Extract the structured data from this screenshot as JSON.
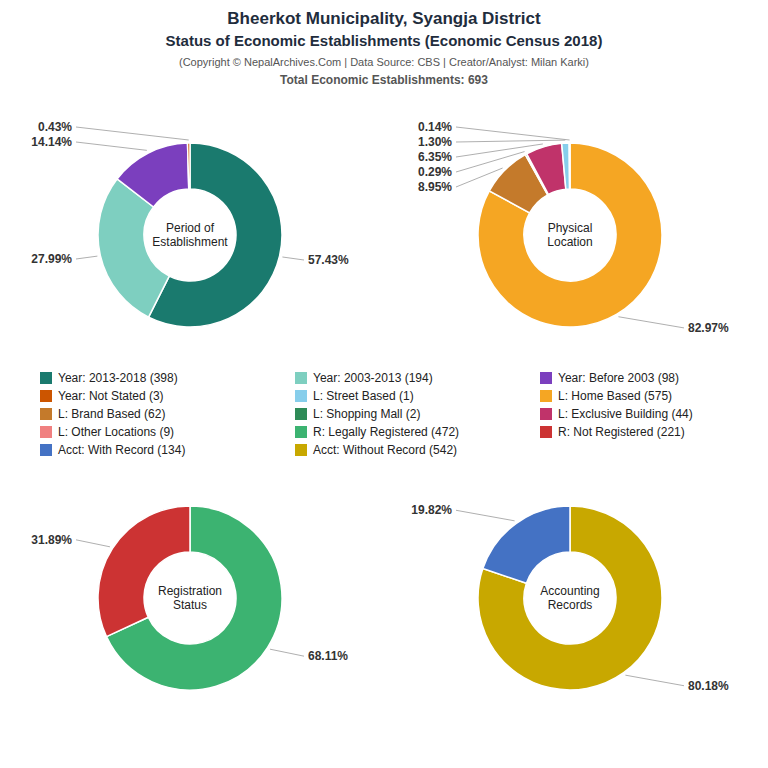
{
  "title": "Bheerkot Municipality, Syangja District",
  "subtitle": "Status of Economic Establishments (Economic Census 2018)",
  "annotations": [
    "(Copyright © NepalArchives.Com | Data Source: CBS | Creator/Analyst: Milan Karki)",
    "Total Economic Establishments: 693"
  ],
  "series": [
    {
      "name": "Year: 2013-2018 (398)",
      "color": "#1A7A6E"
    },
    {
      "name": "Year: 2003-2013 (194)",
      "color": "#7ECFC0"
    },
    {
      "name": "Year: Before 2003 (98)",
      "color": "#7B3FBE"
    },
    {
      "name": "Year: Not Stated (3)",
      "color": "#CC5500"
    },
    {
      "name": "L: Street Based (1)",
      "color": "#87CEEB"
    },
    {
      "name": "L: Home Based (575)",
      "color": "#F5A623"
    },
    {
      "name": "L: Brand Based (62)",
      "color": "#C47A2B"
    },
    {
      "name": "L: Shopping Mall (2)",
      "color": "#2E8B57"
    },
    {
      "name": "L: Exclusive Building (44)",
      "color": "#C0336A"
    },
    {
      "name": "L: Other Locations (9)",
      "color": "#F08080"
    },
    {
      "name": "R: Legally Registered (472)",
      "color": "#3CB371"
    },
    {
      "name": "R: Not Registered (221)",
      "color": "#CC3333"
    },
    {
      "name": "Acct: With Record (134)",
      "color": "#4472C4"
    },
    {
      "name": "Acct: Without Record (542)",
      "color": "#C8A800"
    }
  ],
  "chart_data": [
    {
      "type": "donut",
      "title": "Period of\nEstablishment",
      "values": [
        57.43,
        27.99,
        14.14,
        0.43
      ],
      "value_labels": [
        "57.43%",
        "27.99%",
        "14.14%",
        "0.43%"
      ],
      "colors": [
        "#1A7A6E",
        "#7ECFC0",
        "#7B3FBE",
        "#CC5500"
      ],
      "data_labels": true
    },
    {
      "type": "donut",
      "title": "Physical\nLocation",
      "values": [
        82.97,
        8.95,
        0.29,
        6.35,
        1.3,
        0.14
      ],
      "value_labels": [
        "82.97%",
        "8.95%",
        "0.29%",
        "6.35%",
        "1.30%",
        "0.14%"
      ],
      "colors": [
        "#F5A623",
        "#C47A2B",
        "#2E8B57",
        "#C0336A",
        "#87CEEB",
        "#5B9BD5"
      ],
      "data_labels": true
    },
    {
      "type": "donut",
      "title": "Registration\nStatus",
      "values": [
        68.11,
        31.89
      ],
      "value_labels": [
        "68.11%",
        "31.89%"
      ],
      "colors": [
        "#3CB371",
        "#CC3333"
      ],
      "data_labels": true
    },
    {
      "type": "donut",
      "title": "Accounting\nRecords",
      "values": [
        80.18,
        19.82
      ],
      "value_labels": [
        "80.18%",
        "19.82%"
      ],
      "colors": [
        "#C8A800",
        "#4472C4"
      ],
      "data_labels": true
    }
  ]
}
